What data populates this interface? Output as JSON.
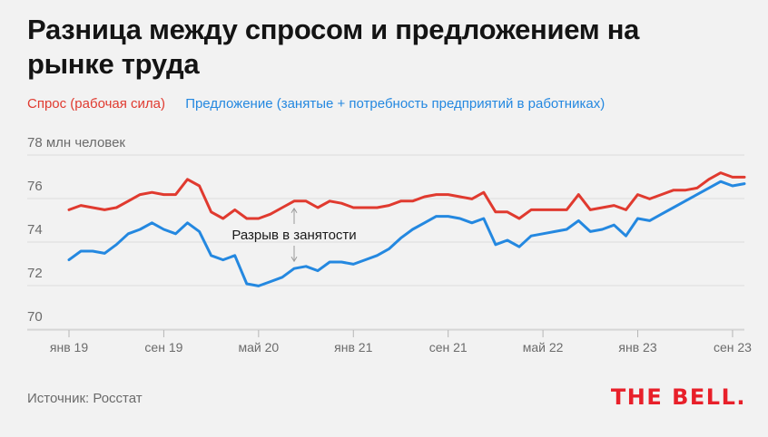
{
  "title": "Разница между спросом и предложением на рынке труда",
  "legend": {
    "demand_label": "Спрос (рабочая сила)",
    "supply_label": "Предложение (занятые + потребность предприятий в работниках)"
  },
  "source": "Источник: Росстат",
  "logo": "THE BELL.",
  "colors": {
    "demand": "#e03a2f",
    "supply": "#2488e0",
    "background": "#f2f2f2"
  },
  "chart_data": {
    "type": "line",
    "ylabel": "78 млн человек",
    "ylim": [
      70,
      78
    ],
    "yticks": [
      70,
      72,
      74,
      76
    ],
    "xticks": [
      {
        "index": 0,
        "label": "янв 19"
      },
      {
        "index": 8,
        "label": "сен 19"
      },
      {
        "index": 16,
        "label": "май 20"
      },
      {
        "index": 24,
        "label": "янв 21"
      },
      {
        "index": 32,
        "label": "сен 21"
      },
      {
        "index": 40,
        "label": "май 22"
      },
      {
        "index": 48,
        "label": "янв 23"
      },
      {
        "index": 56,
        "label": "сен 23"
      }
    ],
    "annotation": {
      "text": "Разрыв в занятости",
      "index": 19
    },
    "series": [
      {
        "name": "Спрос (рабочая сила)",
        "color": "#e03a2f",
        "values": [
          74.9,
          75.1,
          75.0,
          74.9,
          75.0,
          75.3,
          75.6,
          75.7,
          75.6,
          75.6,
          76.3,
          76.0,
          74.8,
          74.5,
          74.9,
          74.5,
          74.5,
          74.7,
          75.0,
          75.3,
          75.3,
          75.0,
          75.3,
          75.2,
          75.0,
          75.0,
          75.0,
          75.1,
          75.3,
          75.3,
          75.5,
          75.6,
          75.6,
          75.5,
          75.4,
          75.7,
          74.8,
          74.8,
          74.5,
          74.9,
          74.9,
          74.9,
          74.9,
          75.6,
          74.9,
          75.0,
          75.1,
          74.9,
          75.6,
          75.4,
          75.6,
          75.8,
          75.8,
          75.9,
          76.3,
          76.6,
          76.4,
          76.4
        ]
      },
      {
        "name": "Предложение (занятые + потребность предприятий в работниках)",
        "color": "#2488e0",
        "values": [
          72.6,
          73.0,
          73.0,
          72.9,
          73.3,
          73.8,
          74.0,
          74.3,
          74.0,
          73.8,
          74.3,
          73.9,
          72.8,
          72.6,
          72.8,
          71.5,
          71.4,
          71.6,
          71.8,
          72.2,
          72.3,
          72.1,
          72.5,
          72.5,
          72.4,
          72.6,
          72.8,
          73.1,
          73.6,
          74.0,
          74.3,
          74.6,
          74.6,
          74.5,
          74.3,
          74.5,
          73.3,
          73.5,
          73.2,
          73.7,
          73.8,
          73.9,
          74.0,
          74.4,
          73.9,
          74.0,
          74.2,
          73.7,
          74.5,
          74.4,
          74.7,
          75.0,
          75.3,
          75.6,
          75.9,
          76.2,
          76.0,
          76.1
        ]
      }
    ]
  }
}
